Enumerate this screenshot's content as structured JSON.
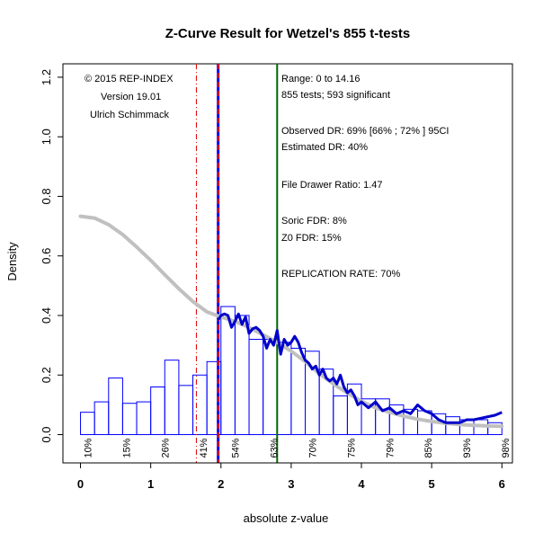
{
  "chart_data": {
    "type": "histogram",
    "title": "Z-Curve Result for Wetzel's 855 t-tests",
    "xlabel": "absolute z-value",
    "ylabel": "Density",
    "xlim": [
      -0.25,
      6.15
    ],
    "ylim": [
      -0.095,
      1.245
    ],
    "x_ticks": [
      "0",
      "1",
      "2",
      "3",
      "4",
      "5",
      "6"
    ],
    "y_ticks": [
      "0.0",
      "0.2",
      "0.4",
      "0.6",
      "0.8",
      "1.0",
      "1.2"
    ],
    "bin_width": 0.2,
    "bins_start": 0,
    "bar_values": [
      0.075,
      0.11,
      0.19,
      0.105,
      0.11,
      0.16,
      0.25,
      0.165,
      0.2,
      0.245,
      0.43,
      0.4,
      0.32,
      0.32,
      0.31,
      0.29,
      0.28,
      0.22,
      0.13,
      0.17,
      0.12,
      0.12,
      0.1,
      0.085,
      0.08,
      0.07,
      0.06,
      0.05,
      0.05,
      0.04
    ],
    "power_labels": [
      {
        "x": 0.1,
        "label": "10%"
      },
      {
        "x": 0.65,
        "label": "15%"
      },
      {
        "x": 1.2,
        "label": "26%"
      },
      {
        "x": 1.75,
        "label": "41%"
      },
      {
        "x": 2.2,
        "label": "54%"
      },
      {
        "x": 2.75,
        "label": "63%"
      },
      {
        "x": 3.3,
        "label": "70%"
      },
      {
        "x": 3.85,
        "label": "75%"
      },
      {
        "x": 4.4,
        "label": "79%"
      },
      {
        "x": 4.95,
        "label": "85%"
      },
      {
        "x": 5.5,
        "label": "93%"
      },
      {
        "x": 6.05,
        "label": "98%"
      }
    ],
    "fitted_curve": {
      "x": [
        0,
        0.2,
        0.4,
        0.6,
        0.8,
        1.0,
        1.2,
        1.4,
        1.6,
        1.8,
        2.0,
        2.2,
        2.4,
        2.6,
        2.8,
        3.0,
        3.2,
        3.4,
        3.6,
        3.8,
        4.0,
        4.2,
        4.4,
        4.6,
        4.8,
        5.0,
        5.2,
        5.4,
        5.6,
        5.8,
        6.0
      ],
      "y": [
        0.733,
        0.727,
        0.705,
        0.672,
        0.63,
        0.585,
        0.537,
        0.49,
        0.447,
        0.412,
        0.395,
        0.38,
        0.36,
        0.335,
        0.31,
        0.28,
        0.245,
        0.205,
        0.17,
        0.14,
        0.112,
        0.09,
        0.075,
        0.062,
        0.052,
        0.044,
        0.038,
        0.034,
        0.031,
        0.029,
        0.028
      ],
      "color": "#c0c0c0"
    },
    "density_curve": {
      "x": [
        1.96,
        2.0,
        2.05,
        2.1,
        2.15,
        2.2,
        2.25,
        2.3,
        2.35,
        2.4,
        2.45,
        2.5,
        2.55,
        2.6,
        2.65,
        2.7,
        2.75,
        2.8,
        2.85,
        2.9,
        2.95,
        3.0,
        3.05,
        3.1,
        3.15,
        3.2,
        3.25,
        3.3,
        3.35,
        3.4,
        3.45,
        3.5,
        3.55,
        3.6,
        3.65,
        3.7,
        3.75,
        3.8,
        3.85,
        3.9,
        3.95,
        4.0,
        4.1,
        4.2,
        4.3,
        4.4,
        4.5,
        4.6,
        4.7,
        4.8,
        4.9,
        5.0,
        5.1,
        5.2,
        5.3,
        5.4,
        5.5,
        5.6,
        5.7,
        5.8,
        5.9,
        6.0
      ],
      "y": [
        0.385,
        0.4,
        0.405,
        0.4,
        0.36,
        0.38,
        0.405,
        0.37,
        0.395,
        0.34,
        0.355,
        0.36,
        0.35,
        0.33,
        0.29,
        0.32,
        0.3,
        0.35,
        0.27,
        0.32,
        0.3,
        0.31,
        0.33,
        0.31,
        0.275,
        0.25,
        0.24,
        0.22,
        0.23,
        0.2,
        0.22,
        0.19,
        0.18,
        0.19,
        0.17,
        0.2,
        0.16,
        0.14,
        0.15,
        0.13,
        0.1,
        0.11,
        0.09,
        0.11,
        0.08,
        0.09,
        0.07,
        0.08,
        0.07,
        0.1,
        0.08,
        0.07,
        0.05,
        0.04,
        0.04,
        0.04,
        0.05,
        0.05,
        0.055,
        0.06,
        0.065,
        0.075
      ],
      "color": "#0000cc"
    },
    "vlines": [
      {
        "x": 1.65,
        "color": "#dd0000",
        "style": "dotdash"
      },
      {
        "x": 1.96,
        "color": "#0000ff",
        "style": "solid"
      },
      {
        "x": 1.96,
        "color": "#ee0000",
        "style": "dashed"
      },
      {
        "x": 2.8,
        "color": "#006600",
        "style": "solid"
      }
    ]
  },
  "legend_left": [
    "© 2015 REP-INDEX",
    "Version 19.01",
    "Ulrich Schimmack"
  ],
  "legend_right": {
    "line1": "Range: 0 to 14.16",
    "line2": "855 tests; 593 significant",
    "line3": "Observed DR: 69% [66% ; 72% ] 95CI",
    "line4": "Estimated DR: 40%",
    "line5": "File Drawer Ratio: 1.47",
    "line6": "Soric FDR: 8%",
    "line7": "Z0 FDR: 15%",
    "line8": "REPLICATION RATE: 70%"
  }
}
